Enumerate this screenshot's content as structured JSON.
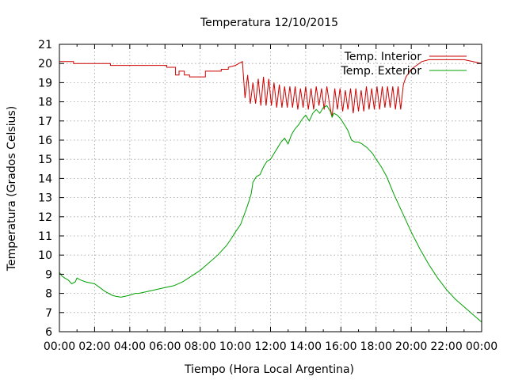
{
  "chart_data": {
    "type": "line",
    "title": "Temperatura 12/10/2015",
    "xlabel": "Tiempo (Hora Local Argentina)",
    "ylabel": "Temperatura (Grados Celsius)",
    "xlim": [
      0,
      24
    ],
    "ylim": [
      6,
      21
    ],
    "grid": true,
    "legend": "top-right",
    "x_ticks": [
      "00:00",
      "02:00",
      "04:00",
      "06:00",
      "08:00",
      "10:00",
      "12:00",
      "14:00",
      "16:00",
      "18:00",
      "20:00",
      "22:00",
      "00:00"
    ],
    "y_ticks": [
      "6",
      "7",
      "8",
      "9",
      "10",
      "11",
      "12",
      "13",
      "14",
      "15",
      "16",
      "17",
      "18",
      "19",
      "20",
      "21"
    ],
    "series": [
      {
        "name": "Temp. Interior",
        "color": "#cc0000",
        "x": [
          0,
          0.8,
          0.8,
          2.9,
          2.9,
          6.1,
          6.1,
          6.6,
          6.6,
          6.8,
          6.8,
          7.1,
          7.1,
          7.4,
          7.4,
          8.3,
          8.3,
          9.2,
          9.2,
          9.6,
          9.6,
          10.0,
          10.2,
          10.4,
          10.55,
          10.7,
          10.85,
          11.0,
          11.15,
          11.3,
          11.45,
          11.6,
          11.75,
          11.9,
          12.05,
          12.2,
          12.35,
          12.5,
          12.65,
          12.8,
          12.95,
          13.1,
          13.25,
          13.4,
          13.55,
          13.7,
          13.85,
          14.0,
          14.15,
          14.3,
          14.45,
          14.6,
          14.75,
          14.9,
          15.05,
          15.2,
          15.35,
          15.5,
          15.65,
          15.8,
          15.95,
          16.1,
          16.25,
          16.4,
          16.55,
          16.7,
          16.85,
          17.0,
          17.15,
          17.3,
          17.45,
          17.6,
          17.75,
          17.9,
          18.05,
          18.2,
          18.35,
          18.5,
          18.65,
          18.8,
          18.95,
          19.1,
          19.25,
          19.4,
          19.55,
          19.7,
          20.0,
          20.3,
          20.6,
          21.0,
          21.6,
          22.0,
          23.0,
          23.5,
          24.0
        ],
        "y": [
          20.1,
          20.1,
          20.0,
          20.0,
          19.9,
          19.9,
          19.8,
          19.8,
          19.4,
          19.4,
          19.6,
          19.6,
          19.4,
          19.4,
          19.3,
          19.3,
          19.6,
          19.6,
          19.7,
          19.7,
          19.8,
          19.9,
          20.0,
          20.1,
          18.2,
          19.4,
          17.9,
          19.0,
          17.9,
          19.2,
          17.8,
          19.3,
          17.8,
          19.2,
          17.8,
          19.0,
          17.7,
          18.9,
          17.7,
          18.8,
          17.7,
          18.8,
          17.7,
          18.8,
          17.6,
          18.7,
          17.7,
          18.8,
          17.6,
          18.7,
          17.6,
          18.8,
          17.8,
          18.7,
          17.6,
          18.8,
          17.9,
          17.2,
          18.7,
          17.6,
          18.7,
          17.5,
          18.6,
          17.6,
          18.7,
          17.4,
          18.7,
          17.5,
          18.6,
          17.5,
          18.8,
          17.6,
          18.7,
          17.6,
          18.8,
          17.6,
          18.8,
          17.7,
          18.8,
          17.7,
          18.8,
          17.6,
          18.8,
          17.6,
          18.9,
          19.3,
          19.7,
          19.9,
          20.1,
          20.2,
          20.2,
          20.2,
          20.2,
          20.1,
          20.0
        ]
      },
      {
        "name": "Temp. Exterior",
        "color": "#00a000",
        "x": [
          0,
          0.15,
          0.3,
          0.5,
          0.7,
          0.9,
          1.0,
          1.2,
          1.5,
          2.0,
          2.3,
          2.6,
          3.0,
          3.2,
          3.5,
          4.0,
          4.3,
          4.5,
          5.0,
          5.5,
          6.0,
          6.5,
          7.0,
          7.5,
          8.0,
          8.5,
          9.0,
          9.5,
          9.8,
          10.0,
          10.3,
          10.5,
          10.7,
          10.9,
          11.0,
          11.2,
          11.4,
          11.6,
          11.8,
          12.0,
          12.2,
          12.4,
          12.6,
          12.8,
          13.0,
          13.2,
          13.4,
          13.6,
          13.8,
          14.0,
          14.2,
          14.4,
          14.6,
          14.8,
          15.0,
          15.2,
          15.4,
          15.5,
          15.6,
          15.8,
          16.0,
          16.2,
          16.4,
          16.6,
          16.8,
          17.0,
          17.2,
          17.5,
          17.8,
          18.0,
          18.3,
          18.6,
          19.0,
          19.3,
          19.6,
          20.0,
          20.5,
          21.0,
          21.5,
          22.0,
          22.5,
          23.0,
          23.5,
          24.0
        ],
        "y": [
          9.1,
          8.9,
          8.8,
          8.7,
          8.5,
          8.6,
          8.8,
          8.7,
          8.6,
          8.5,
          8.3,
          8.1,
          7.9,
          7.85,
          7.8,
          7.9,
          8.0,
          8.0,
          8.1,
          8.2,
          8.3,
          8.4,
          8.6,
          8.9,
          9.2,
          9.6,
          10.0,
          10.5,
          10.9,
          11.2,
          11.6,
          12.1,
          12.6,
          13.2,
          13.8,
          14.1,
          14.2,
          14.6,
          14.9,
          15.0,
          15.3,
          15.6,
          15.9,
          16.1,
          15.8,
          16.3,
          16.6,
          16.8,
          17.1,
          17.3,
          17.0,
          17.4,
          17.6,
          17.4,
          17.7,
          17.8,
          17.5,
          17.2,
          17.4,
          17.3,
          17.1,
          16.8,
          16.5,
          16.0,
          15.9,
          15.9,
          15.8,
          15.6,
          15.3,
          15.0,
          14.6,
          14.1,
          13.2,
          12.6,
          12.0,
          11.2,
          10.3,
          9.5,
          8.8,
          8.2,
          7.7,
          7.3,
          6.9,
          6.5
        ]
      }
    ]
  }
}
